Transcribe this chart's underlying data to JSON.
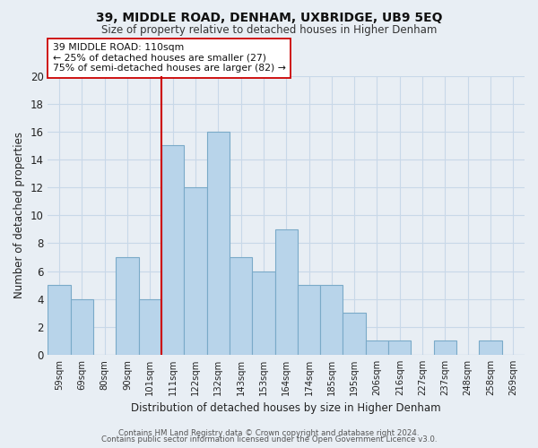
{
  "title": "39, MIDDLE ROAD, DENHAM, UXBRIDGE, UB9 5EQ",
  "subtitle": "Size of property relative to detached houses in Higher Denham",
  "xlabel": "Distribution of detached houses by size in Higher Denham",
  "ylabel": "Number of detached properties",
  "bar_color": "#b8d4ea",
  "bar_edge_color": "#7aaac8",
  "categories": [
    "59sqm",
    "69sqm",
    "80sqm",
    "90sqm",
    "101sqm",
    "111sqm",
    "122sqm",
    "132sqm",
    "143sqm",
    "153sqm",
    "164sqm",
    "174sqm",
    "185sqm",
    "195sqm",
    "206sqm",
    "216sqm",
    "227sqm",
    "237sqm",
    "248sqm",
    "258sqm",
    "269sqm"
  ],
  "values": [
    5,
    4,
    0,
    7,
    4,
    15,
    12,
    16,
    7,
    6,
    9,
    5,
    5,
    3,
    1,
    1,
    0,
    1,
    0,
    1,
    0
  ],
  "ylim": [
    0,
    20
  ],
  "yticks": [
    0,
    2,
    4,
    6,
    8,
    10,
    12,
    14,
    16,
    18,
    20
  ],
  "annotation_line1": "39 MIDDLE ROAD: 110sqm",
  "annotation_line2": "← 25% of detached houses are smaller (27)",
  "annotation_line3": "75% of semi-detached houses are larger (82) →",
  "vline_color": "#cc0000",
  "annotation_box_color": "#ffffff",
  "annotation_box_edge_color": "#cc0000",
  "grid_color": "#c8d8e8",
  "footer_line1": "Contains HM Land Registry data © Crown copyright and database right 2024.",
  "footer_line2": "Contains public sector information licensed under the Open Government Licence v3.0.",
  "background_color": "#e8eef4"
}
